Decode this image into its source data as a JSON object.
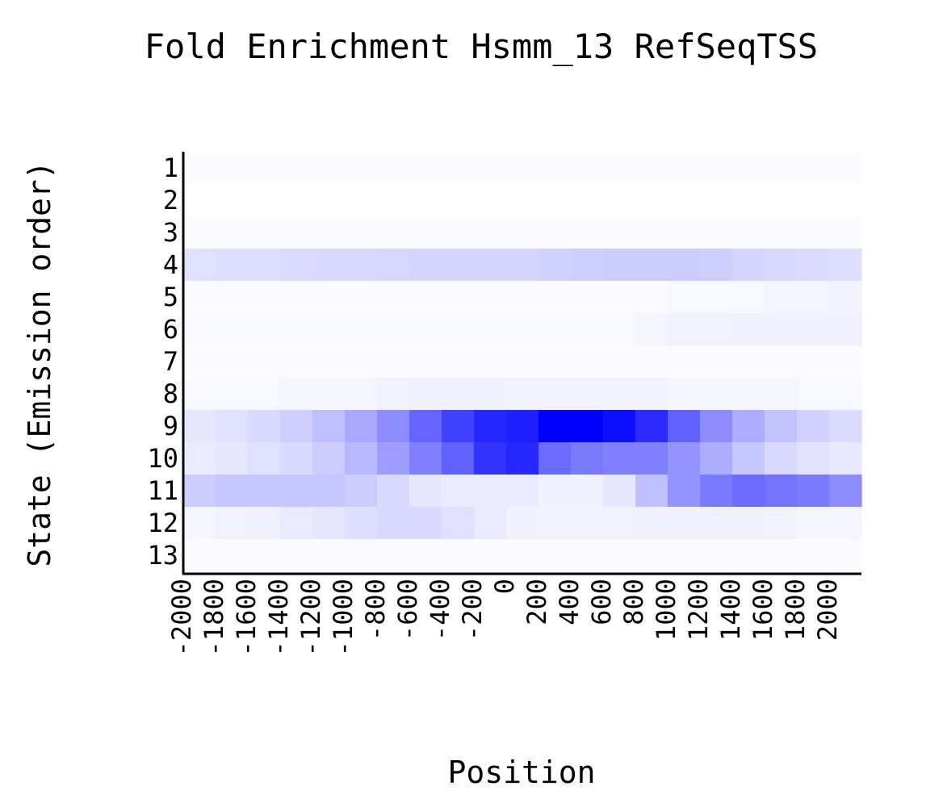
{
  "chart_data": {
    "type": "heatmap",
    "title": "Fold Enrichment Hsmm_13 RefSeqTSS",
    "xlabel": "Position",
    "ylabel": "State (Emission order)",
    "x": [
      "-2000",
      "-1800",
      "-1600",
      "-1400",
      "-1200",
      "-1000",
      "-800",
      "-600",
      "-400",
      "-200",
      "0",
      "200",
      "400",
      "600",
      "800",
      "1000",
      "1200",
      "1400",
      "1600",
      "1800",
      "2000"
    ],
    "y": [
      "1",
      "2",
      "3",
      "4",
      "5",
      "6",
      "7",
      "8",
      "9",
      "10",
      "11",
      "12",
      "13"
    ],
    "values": [
      [
        0.02,
        0.02,
        0.02,
        0.02,
        0.02,
        0.02,
        0.02,
        0.02,
        0.02,
        0.02,
        0.02,
        0.02,
        0.02,
        0.02,
        0.02,
        0.02,
        0.02,
        0.02,
        0.02,
        0.02,
        0.02
      ],
      [
        0.0,
        0.0,
        0.0,
        0.0,
        0.0,
        0.0,
        0.0,
        0.0,
        0.0,
        0.0,
        0.0,
        0.0,
        0.0,
        0.0,
        0.0,
        0.0,
        0.0,
        0.0,
        0.0,
        0.0,
        0.0
      ],
      [
        0.02,
        0.02,
        0.02,
        0.02,
        0.02,
        0.02,
        0.02,
        0.02,
        0.02,
        0.02,
        0.02,
        0.02,
        0.02,
        0.02,
        0.02,
        0.02,
        0.02,
        0.02,
        0.02,
        0.02,
        0.02
      ],
      [
        0.12,
        0.13,
        0.13,
        0.14,
        0.15,
        0.15,
        0.16,
        0.17,
        0.17,
        0.17,
        0.17,
        0.18,
        0.19,
        0.2,
        0.2,
        0.2,
        0.19,
        0.17,
        0.15,
        0.14,
        0.13
      ],
      [
        0.02,
        0.02,
        0.02,
        0.02,
        0.02,
        0.02,
        0.02,
        0.02,
        0.02,
        0.02,
        0.02,
        0.02,
        0.02,
        0.02,
        0.02,
        0.03,
        0.03,
        0.03,
        0.04,
        0.04,
        0.05
      ],
      [
        0.03,
        0.03,
        0.03,
        0.03,
        0.03,
        0.03,
        0.03,
        0.03,
        0.03,
        0.03,
        0.03,
        0.03,
        0.03,
        0.03,
        0.04,
        0.05,
        0.05,
        0.06,
        0.06,
        0.06,
        0.06
      ],
      [
        0.02,
        0.02,
        0.02,
        0.02,
        0.02,
        0.02,
        0.02,
        0.02,
        0.02,
        0.02,
        0.02,
        0.02,
        0.02,
        0.02,
        0.02,
        0.02,
        0.02,
        0.02,
        0.02,
        0.02,
        0.02
      ],
      [
        0.03,
        0.03,
        0.03,
        0.04,
        0.04,
        0.04,
        0.05,
        0.06,
        0.06,
        0.06,
        0.05,
        0.05,
        0.05,
        0.05,
        0.05,
        0.04,
        0.04,
        0.04,
        0.04,
        0.03,
        0.03
      ],
      [
        0.1,
        0.12,
        0.15,
        0.19,
        0.25,
        0.34,
        0.45,
        0.6,
        0.75,
        0.85,
        0.88,
        1.0,
        1.0,
        0.95,
        0.83,
        0.62,
        0.45,
        0.32,
        0.24,
        0.18,
        0.14
      ],
      [
        0.08,
        0.1,
        0.12,
        0.15,
        0.2,
        0.28,
        0.38,
        0.5,
        0.62,
        0.8,
        0.85,
        0.58,
        0.52,
        0.5,
        0.5,
        0.42,
        0.32,
        0.22,
        0.15,
        0.11,
        0.09
      ],
      [
        0.2,
        0.22,
        0.22,
        0.22,
        0.22,
        0.2,
        0.15,
        0.1,
        0.08,
        0.08,
        0.08,
        0.06,
        0.06,
        0.1,
        0.25,
        0.42,
        0.52,
        0.58,
        0.55,
        0.52,
        0.45
      ],
      [
        0.04,
        0.05,
        0.06,
        0.08,
        0.1,
        0.13,
        0.15,
        0.15,
        0.12,
        0.08,
        0.06,
        0.05,
        0.05,
        0.05,
        0.06,
        0.06,
        0.06,
        0.06,
        0.05,
        0.04,
        0.04
      ],
      [
        0.02,
        0.02,
        0.02,
        0.02,
        0.02,
        0.02,
        0.02,
        0.02,
        0.02,
        0.02,
        0.02,
        0.02,
        0.02,
        0.02,
        0.02,
        0.02,
        0.02,
        0.02,
        0.02,
        0.02,
        0.02
      ]
    ],
    "color_min": "#ffffff",
    "color_max": "#0000ff",
    "grid": false,
    "legend": "none"
  }
}
